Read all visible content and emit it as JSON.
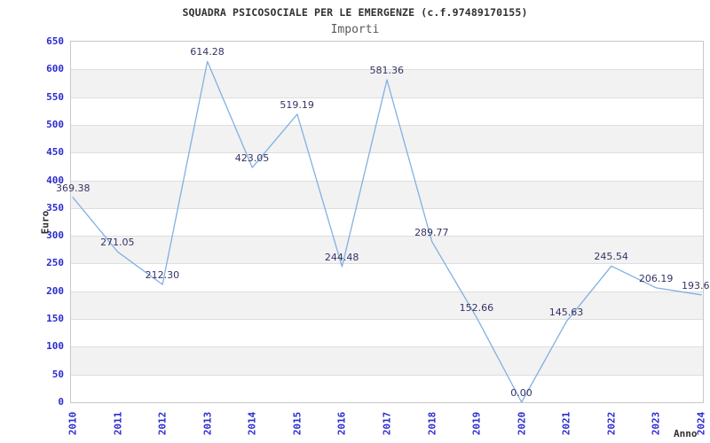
{
  "chart": {
    "title": "SQUADRA PSICOSOCIALE PER LE EMERGENZE (c.f.97489170155)",
    "subtitle": "Importi",
    "y_axis_label": "Euro",
    "x_axis_label": "Anno"
  },
  "colors": {
    "line": "#82b0e2",
    "tick_label": "#2b2bd1",
    "point_label": "#333366",
    "band_fill": "#f2f2f2",
    "gridline": "#dedede",
    "plot_border": "#c8c8c8",
    "title_text": "#323232",
    "subtitle_text": "#5a5a5a"
  },
  "chart_data": {
    "type": "line",
    "title": "SQUADRA PSICOSOCIALE PER LE EMERGENZE (c.f.97489170155)",
    "subtitle": "Importi",
    "xlabel": "Anno",
    "ylabel": "Euro",
    "categories": [
      "2010",
      "2011",
      "2012",
      "2013",
      "2014",
      "2015",
      "2016",
      "2017",
      "2018",
      "2019",
      "2020",
      "2021",
      "2022",
      "2023",
      "2024"
    ],
    "values": [
      369.38,
      271.05,
      212.3,
      614.28,
      423.05,
      519.19,
      244.48,
      581.36,
      289.77,
      152.66,
      0.0,
      145.63,
      245.54,
      206.19,
      193.6
    ],
    "point_labels": [
      "369.38",
      "271.05",
      "212.30",
      "614.28",
      "423.05",
      "519.19",
      "244.48",
      "581.36",
      "289.77",
      "152.66",
      "0.00",
      "145.63",
      "245.54",
      "206.19",
      "193.6"
    ],
    "ylim": [
      0,
      650
    ],
    "y_tick_step": 50,
    "grid": "horizontal",
    "banded_background": true,
    "legend": "none"
  }
}
